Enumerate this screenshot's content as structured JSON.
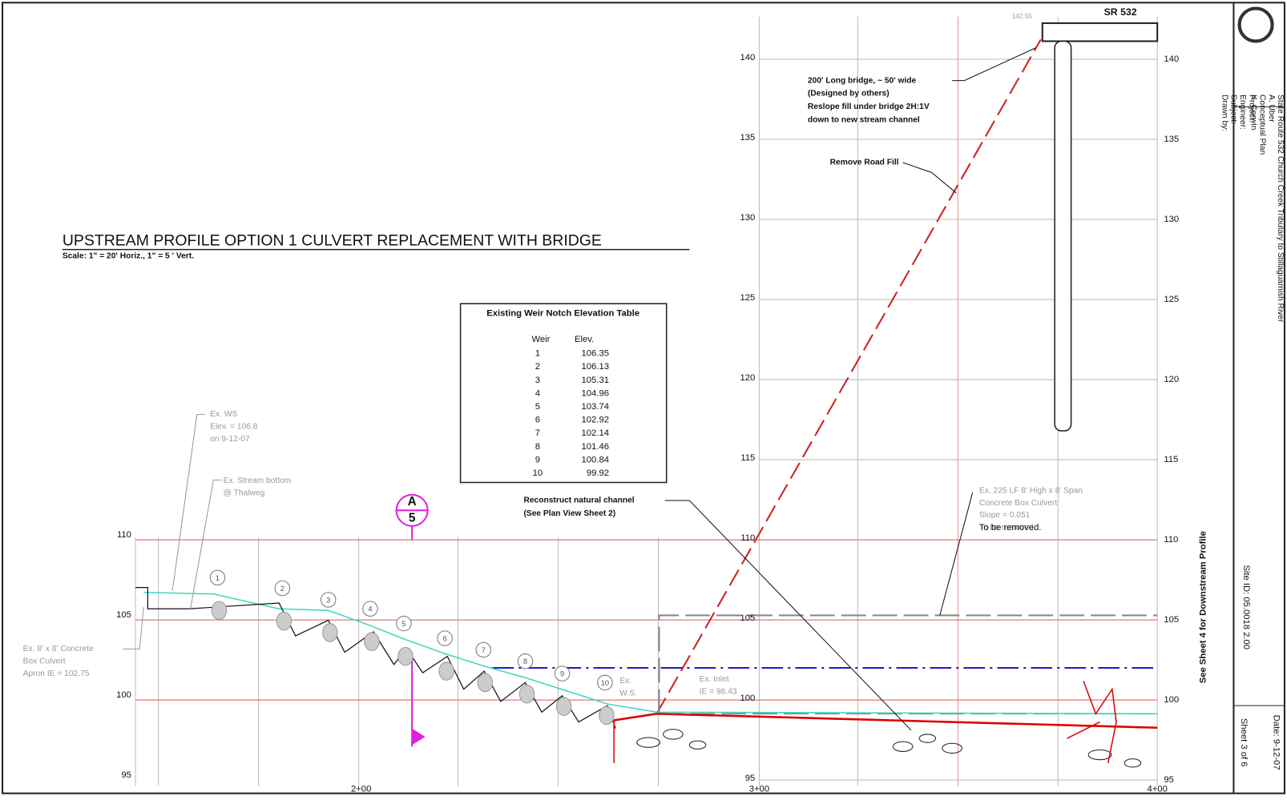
{
  "title": "UPSTREAM PROFILE OPTION 1 CULVERT REPLACEMENT WITH BRIDGE",
  "scale": "Scale: 1\" = 20' Horiz., 1\" = 5 ' Vert.",
  "table": {
    "title": "Existing Weir Notch Elevation Table",
    "headers": [
      "Weir",
      "Elev."
    ],
    "rows": [
      [
        1,
        106.35
      ],
      [
        2,
        106.13
      ],
      [
        3,
        105.31
      ],
      [
        4,
        104.96
      ],
      [
        5,
        103.74
      ],
      [
        6,
        102.92
      ],
      [
        7,
        102.14
      ],
      [
        8,
        101.46
      ],
      [
        9,
        100.84
      ],
      [
        10,
        99.92
      ]
    ]
  },
  "left_elevations": [
    110,
    105,
    100,
    95
  ],
  "right_elevations": [
    140,
    135,
    130,
    125,
    120,
    115,
    110,
    105,
    100,
    95
  ],
  "stations": [
    "2+00",
    "3+00",
    "4+00"
  ],
  "weirs": [
    1,
    2,
    3,
    4,
    5,
    6,
    7,
    8,
    9,
    10
  ],
  "section_marker": {
    "letter": "A",
    "sheet": 5
  },
  "road": "SR 532",
  "road_elevation": "142.55",
  "notes": {
    "existing_ws": [
      "Ex. WS",
      "Elev. = 106.8",
      "on 9-12-07"
    ],
    "stream_bottom": [
      "Ex. Stream bottom",
      "@ Thalweg"
    ],
    "box_culvert": [
      "Ex. 8' x 8' Concrete",
      "Box Culvert",
      "Apron IE = 102.75"
    ],
    "culvert_removed": [
      "Ex. 225 LF 8' High x 8' Span",
      "Concrete Box Culvert",
      "Slope = 0.051",
      "To be removed."
    ],
    "reconstruct": [
      "Reconstruct natural channel",
      "(See Plan View Sheet 2)"
    ],
    "bridge": [
      "200' Long bridge, ~ 50' wide",
      "(Designed by others)",
      "Reslope fill under bridge 2H:1V",
      "down to new stream channel"
    ],
    "road_fill": "Remove Road Fill",
    "inlet": [
      "Ex. Inlet",
      "IE = 98.43"
    ],
    "ex_ws": [
      "Ex.",
      "W.S."
    ]
  },
  "title_block": {
    "labels": [
      "Project:",
      "Engineer:",
      "Subject:",
      "Drawn by:"
    ],
    "values": [
      "State Route 532 Church Creek Tributary to Stillaguamish River",
      "A. Uber",
      "Conceptual Plan",
      "K. Corwin"
    ],
    "site_id": "Site ID: 05.0018 2.00",
    "date": "Date: 9-12-07",
    "sheet": "Sheet 3 of 6"
  },
  "see_sheet": "See Sheet 4 for Downstream Profile"
}
